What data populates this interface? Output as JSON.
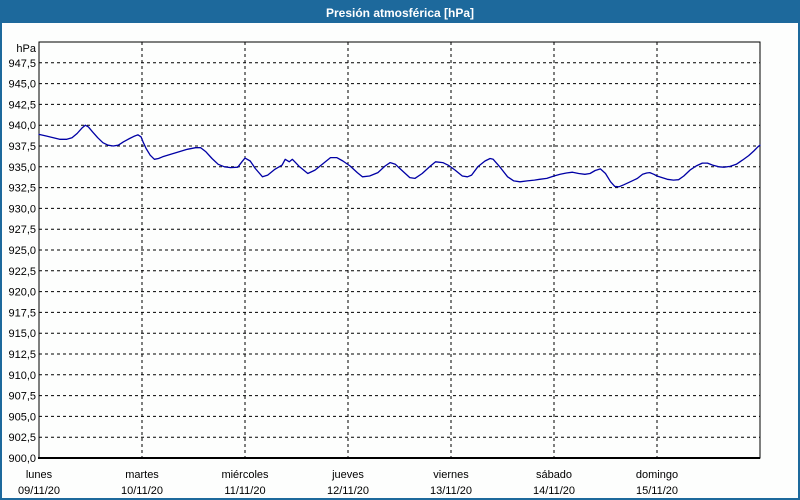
{
  "window": {
    "title": "Presión atmosférica [hPa]"
  },
  "colors": {
    "titlebar": "#1d699c",
    "frame": "#1d699c",
    "background": "#fdfefd",
    "title_text": "#ffffff",
    "label_text": "#000000",
    "grid": "#000000",
    "line": "#0000a5"
  },
  "chart_data": {
    "type": "line",
    "title": "Presión atmosférica [hPa]",
    "grid": "dashed",
    "legend": "none",
    "y_axis": {
      "unit_label": "hPa",
      "min": 900,
      "max": 950,
      "tick_step": 2.5,
      "tick_labels": [
        "947,5",
        "945,0",
        "942,5",
        "940,0",
        "937,5",
        "935,0",
        "932,5",
        "930,0",
        "927,5",
        "925,0",
        "922,5",
        "920,0",
        "917,5",
        "915,0",
        "912,5",
        "910,0",
        "907,5",
        "905,0",
        "902,5",
        "900,0"
      ]
    },
    "x_axis": {
      "days": [
        {
          "name": "lunes",
          "date": "09/11/20"
        },
        {
          "name": "martes",
          "date": "10/11/20"
        },
        {
          "name": "miércoles",
          "date": "11/11/20"
        },
        {
          "name": "jueves",
          "date": "12/11/20"
        },
        {
          "name": "viernes",
          "date": "13/11/20"
        },
        {
          "name": "sábado",
          "date": "14/11/20"
        },
        {
          "name": "domingo",
          "date": "15/11/20"
        }
      ]
    },
    "series": [
      {
        "name": "Presión atmosférica",
        "color": "#0000a5",
        "x_unit": "days_from_start",
        "points": [
          [
            0.0,
            938.9
          ],
          [
            0.07,
            938.7
          ],
          [
            0.14,
            938.5
          ],
          [
            0.2,
            938.3
          ],
          [
            0.27,
            938.3
          ],
          [
            0.32,
            938.5
          ],
          [
            0.37,
            939.0
          ],
          [
            0.42,
            939.7
          ],
          [
            0.45,
            940.0
          ],
          [
            0.48,
            939.8
          ],
          [
            0.52,
            939.2
          ],
          [
            0.57,
            938.5
          ],
          [
            0.62,
            937.9
          ],
          [
            0.67,
            937.6
          ],
          [
            0.72,
            937.5
          ],
          [
            0.77,
            937.6
          ],
          [
            0.82,
            938.0
          ],
          [
            0.88,
            938.4
          ],
          [
            0.92,
            938.65
          ],
          [
            0.96,
            938.85
          ],
          [
            0.99,
            938.6
          ],
          [
            1.01,
            938.0
          ],
          [
            1.04,
            937.2
          ],
          [
            1.08,
            936.4
          ],
          [
            1.12,
            935.9
          ],
          [
            1.16,
            936.0
          ],
          [
            1.2,
            936.2
          ],
          [
            1.28,
            936.5
          ],
          [
            1.36,
            936.8
          ],
          [
            1.44,
            937.1
          ],
          [
            1.52,
            937.3
          ],
          [
            1.57,
            937.3
          ],
          [
            1.62,
            936.8
          ],
          [
            1.68,
            936.0
          ],
          [
            1.74,
            935.3
          ],
          [
            1.8,
            935.0
          ],
          [
            1.86,
            934.9
          ],
          [
            1.93,
            934.95
          ],
          [
            1.97,
            935.6
          ],
          [
            2.0,
            936.05
          ],
          [
            2.05,
            935.7
          ],
          [
            2.1,
            934.8
          ],
          [
            2.17,
            933.8
          ],
          [
            2.22,
            934.0
          ],
          [
            2.29,
            934.7
          ],
          [
            2.36,
            935.2
          ],
          [
            2.39,
            935.9
          ],
          [
            2.43,
            935.6
          ],
          [
            2.46,
            935.9
          ],
          [
            2.53,
            935.0
          ],
          [
            2.61,
            934.2
          ],
          [
            2.68,
            934.6
          ],
          [
            2.75,
            935.3
          ],
          [
            2.83,
            936.1
          ],
          [
            2.89,
            936.1
          ],
          [
            2.95,
            935.7
          ],
          [
            3.02,
            935.1
          ],
          [
            3.09,
            934.3
          ],
          [
            3.14,
            933.8
          ],
          [
            3.21,
            933.9
          ],
          [
            3.29,
            934.3
          ],
          [
            3.36,
            935.1
          ],
          [
            3.41,
            935.5
          ],
          [
            3.46,
            935.3
          ],
          [
            3.52,
            934.6
          ],
          [
            3.6,
            933.7
          ],
          [
            3.65,
            933.6
          ],
          [
            3.72,
            934.2
          ],
          [
            3.8,
            935.1
          ],
          [
            3.85,
            935.6
          ],
          [
            3.92,
            935.5
          ],
          [
            3.98,
            935.15
          ],
          [
            4.04,
            934.6
          ],
          [
            4.11,
            933.9
          ],
          [
            4.16,
            933.8
          ],
          [
            4.2,
            934.0
          ],
          [
            4.26,
            935.0
          ],
          [
            4.33,
            935.7
          ],
          [
            4.38,
            936.0
          ],
          [
            4.41,
            935.9
          ],
          [
            4.48,
            934.9
          ],
          [
            4.55,
            933.8
          ],
          [
            4.61,
            933.3
          ],
          [
            4.67,
            933.2
          ],
          [
            4.74,
            933.3
          ],
          [
            4.81,
            933.4
          ],
          [
            4.86,
            933.5
          ],
          [
            4.93,
            933.6
          ],
          [
            5.0,
            933.9
          ],
          [
            5.06,
            934.1
          ],
          [
            5.12,
            934.25
          ],
          [
            5.18,
            934.35
          ],
          [
            5.24,
            934.2
          ],
          [
            5.3,
            934.1
          ],
          [
            5.35,
            934.2
          ],
          [
            5.4,
            934.55
          ],
          [
            5.45,
            934.75
          ],
          [
            5.5,
            934.2
          ],
          [
            5.55,
            933.2
          ],
          [
            5.59,
            932.65
          ],
          [
            5.63,
            932.6
          ],
          [
            5.68,
            932.85
          ],
          [
            5.74,
            933.2
          ],
          [
            5.81,
            933.6
          ],
          [
            5.86,
            934.1
          ],
          [
            5.9,
            934.25
          ],
          [
            5.93,
            934.3
          ],
          [
            5.97,
            934.1
          ],
          [
            6.0,
            933.9
          ],
          [
            6.05,
            933.7
          ],
          [
            6.1,
            933.5
          ],
          [
            6.16,
            933.4
          ],
          [
            6.21,
            933.45
          ],
          [
            6.26,
            933.9
          ],
          [
            6.32,
            934.6
          ],
          [
            6.38,
            935.1
          ],
          [
            6.44,
            935.45
          ],
          [
            6.49,
            935.45
          ],
          [
            6.54,
            935.2
          ],
          [
            6.6,
            935.0
          ],
          [
            6.65,
            934.95
          ],
          [
            6.71,
            935.05
          ],
          [
            6.77,
            935.3
          ],
          [
            6.83,
            935.8
          ],
          [
            6.89,
            936.35
          ],
          [
            6.94,
            936.9
          ],
          [
            6.98,
            937.4
          ],
          [
            7.0,
            937.6
          ]
        ]
      }
    ]
  }
}
